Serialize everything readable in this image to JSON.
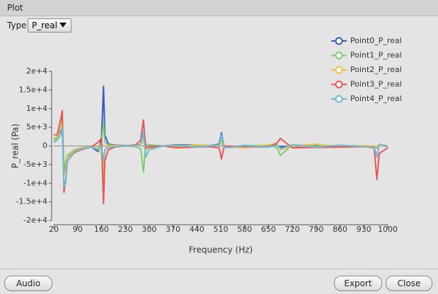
{
  "window": {
    "title": "Plot"
  },
  "controls": {
    "type_label": "Type",
    "type_value": "P_real"
  },
  "chart_data": {
    "type": "line",
    "xlabel": "Frequency (Hz)",
    "ylabel": "P_real (Pa)",
    "x": [
      20,
      30,
      40,
      45,
      50,
      55,
      60,
      80,
      100,
      130,
      150,
      160,
      166,
      170,
      180,
      200,
      230,
      260,
      275,
      283,
      290,
      300,
      340,
      380,
      440,
      480,
      505,
      512,
      520,
      580,
      650,
      675,
      685,
      720,
      790,
      860,
      930,
      960,
      968,
      975,
      1000
    ],
    "series": [
      {
        "name": "Point0_P_real",
        "color": "#3a5bbf",
        "values": [
          2000,
          2500,
          4000,
          4500,
          -7000,
          -5000,
          -3000,
          -1500,
          -800,
          -300,
          -1500,
          2000,
          16000,
          3000,
          500,
          200,
          100,
          0,
          500,
          3500,
          -1000,
          -500,
          0,
          300,
          200,
          100,
          500,
          3500,
          -500,
          100,
          0,
          200,
          -300,
          0,
          100,
          0,
          0,
          0,
          -500,
          300,
          0
        ]
      },
      {
        "name": "Point1_P_real",
        "color": "#7ccc70",
        "values": [
          1500,
          2000,
          5000,
          8000,
          -6000,
          -4000,
          -2500,
          -1000,
          -500,
          -200,
          -800,
          1000,
          6500,
          1000,
          300,
          100,
          0,
          -200,
          -800,
          -7000,
          500,
          300,
          0,
          200,
          0,
          100,
          300,
          1500,
          -300,
          0,
          200,
          -500,
          -2500,
          300,
          0,
          100,
          0,
          0,
          -200,
          100,
          0
        ]
      },
      {
        "name": "Point2_P_real",
        "color": "#f2c040",
        "values": [
          2000,
          2500,
          5000,
          7000,
          -8000,
          -6000,
          -3000,
          -1200,
          -600,
          -200,
          -500,
          -2000,
          -8000,
          -1000,
          0,
          100,
          0,
          0,
          400,
          1500,
          -1000,
          -500,
          0,
          -300,
          300,
          0,
          200,
          800,
          -200,
          -500,
          300,
          600,
          -1000,
          0,
          500,
          -300,
          100,
          0,
          -300,
          0,
          0
        ]
      },
      {
        "name": "Point3_P_real",
        "color": "#e85555",
        "values": [
          3000,
          3000,
          7000,
          9500,
          -12500,
          -9000,
          -4000,
          -1800,
          -1000,
          -300,
          1000,
          2000,
          -15500,
          -4000,
          -1000,
          -300,
          0,
          300,
          1500,
          7000,
          -500,
          -300,
          0,
          -500,
          -300,
          -200,
          -500,
          -3500,
          0,
          -200,
          -300,
          800,
          2000,
          -500,
          -400,
          -300,
          -200,
          -500,
          -9000,
          -2000,
          -500
        ]
      },
      {
        "name": "Point4_P_real",
        "color": "#6cbcd8",
        "values": [
          1000,
          1500,
          3000,
          5000,
          -11000,
          -10000,
          -4000,
          -1500,
          -800,
          -300,
          -1000,
          -500,
          -4000,
          -1000,
          -300,
          -200,
          0,
          100,
          500,
          4000,
          -3000,
          -1000,
          0,
          200,
          -300,
          0,
          200,
          3000,
          -500,
          0,
          -300,
          200,
          -800,
          300,
          -300,
          200,
          -200,
          -300,
          -3000,
          500,
          -300
        ]
      }
    ],
    "xlim": [
      20,
      1000
    ],
    "xticks": [
      20,
      90,
      160,
      230,
      300,
      370,
      440,
      510,
      580,
      650,
      720,
      790,
      860,
      930,
      1000
    ],
    "ylim": [
      -20000,
      20000
    ],
    "yticks": [
      {
        "value": -20000,
        "label": "-2e+4"
      },
      {
        "value": -15000,
        "label": "-1.5e+4"
      },
      {
        "value": -10000,
        "label": "-1e+4"
      },
      {
        "value": -5000,
        "label": "-5e+3"
      },
      0,
      {
        "value": 5000,
        "label": "5e+3"
      },
      {
        "value": 10000,
        "label": "1e+4"
      },
      {
        "value": 15000,
        "label": "1.5e+4"
      },
      {
        "value": 20000,
        "label": "2e+4"
      }
    ],
    "grid": false,
    "legend": "top-right"
  },
  "buttons": {
    "audio": "Audio",
    "export": "Export",
    "close": "Close"
  }
}
